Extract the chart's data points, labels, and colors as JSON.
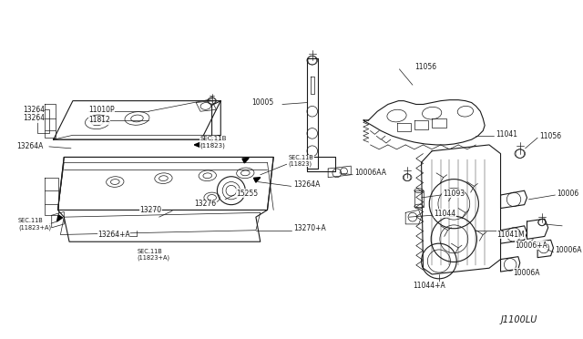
{
  "bg_color": "#ffffff",
  "line_color": "#1a1a1a",
  "text_color": "#1a1a1a",
  "diagram_label": "J1100LU",
  "fig_width": 6.4,
  "fig_height": 3.72,
  "dpi": 100,
  "xlim": [
    0,
    640
  ],
  "ylim": [
    0,
    372
  ]
}
